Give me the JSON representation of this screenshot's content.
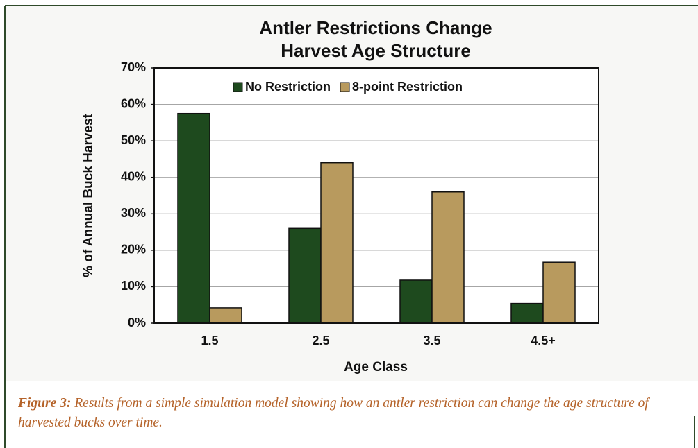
{
  "chart_data": {
    "type": "bar",
    "title": [
      "Antler Restrictions Change",
      "Harvest Age Structure"
    ],
    "xlabel": "Age Class",
    "ylabel": "% of Annual Buck Harvest",
    "categories": [
      "1.5",
      "2.5",
      "3.5",
      "4.5+"
    ],
    "series": [
      {
        "name": "No Restriction",
        "color": "#1e4a1e",
        "values": [
          57.5,
          26,
          11.8,
          5.4
        ]
      },
      {
        "name": "8-point Restriction",
        "color": "#b89a5e",
        "values": [
          4.2,
          44,
          36,
          16.7
        ]
      }
    ],
    "ylim": [
      0,
      70
    ],
    "yticks": [
      {
        "value": 0,
        "label": "0%"
      },
      {
        "value": 10,
        "label": "10%"
      },
      {
        "value": 20,
        "label": "20%"
      },
      {
        "value": 30,
        "label": "30%"
      },
      {
        "value": 40,
        "label": "40%"
      },
      {
        "value": 50,
        "label": "50%"
      },
      {
        "value": 60,
        "label": "60%"
      },
      {
        "value": 70,
        "label": "70%"
      }
    ],
    "grid": true,
    "legend": "top"
  },
  "caption": {
    "label": "Figure 3:",
    "text": "Results from a simple simulation model showing how an antler restriction can change the age structure of harvested bucks over time."
  }
}
